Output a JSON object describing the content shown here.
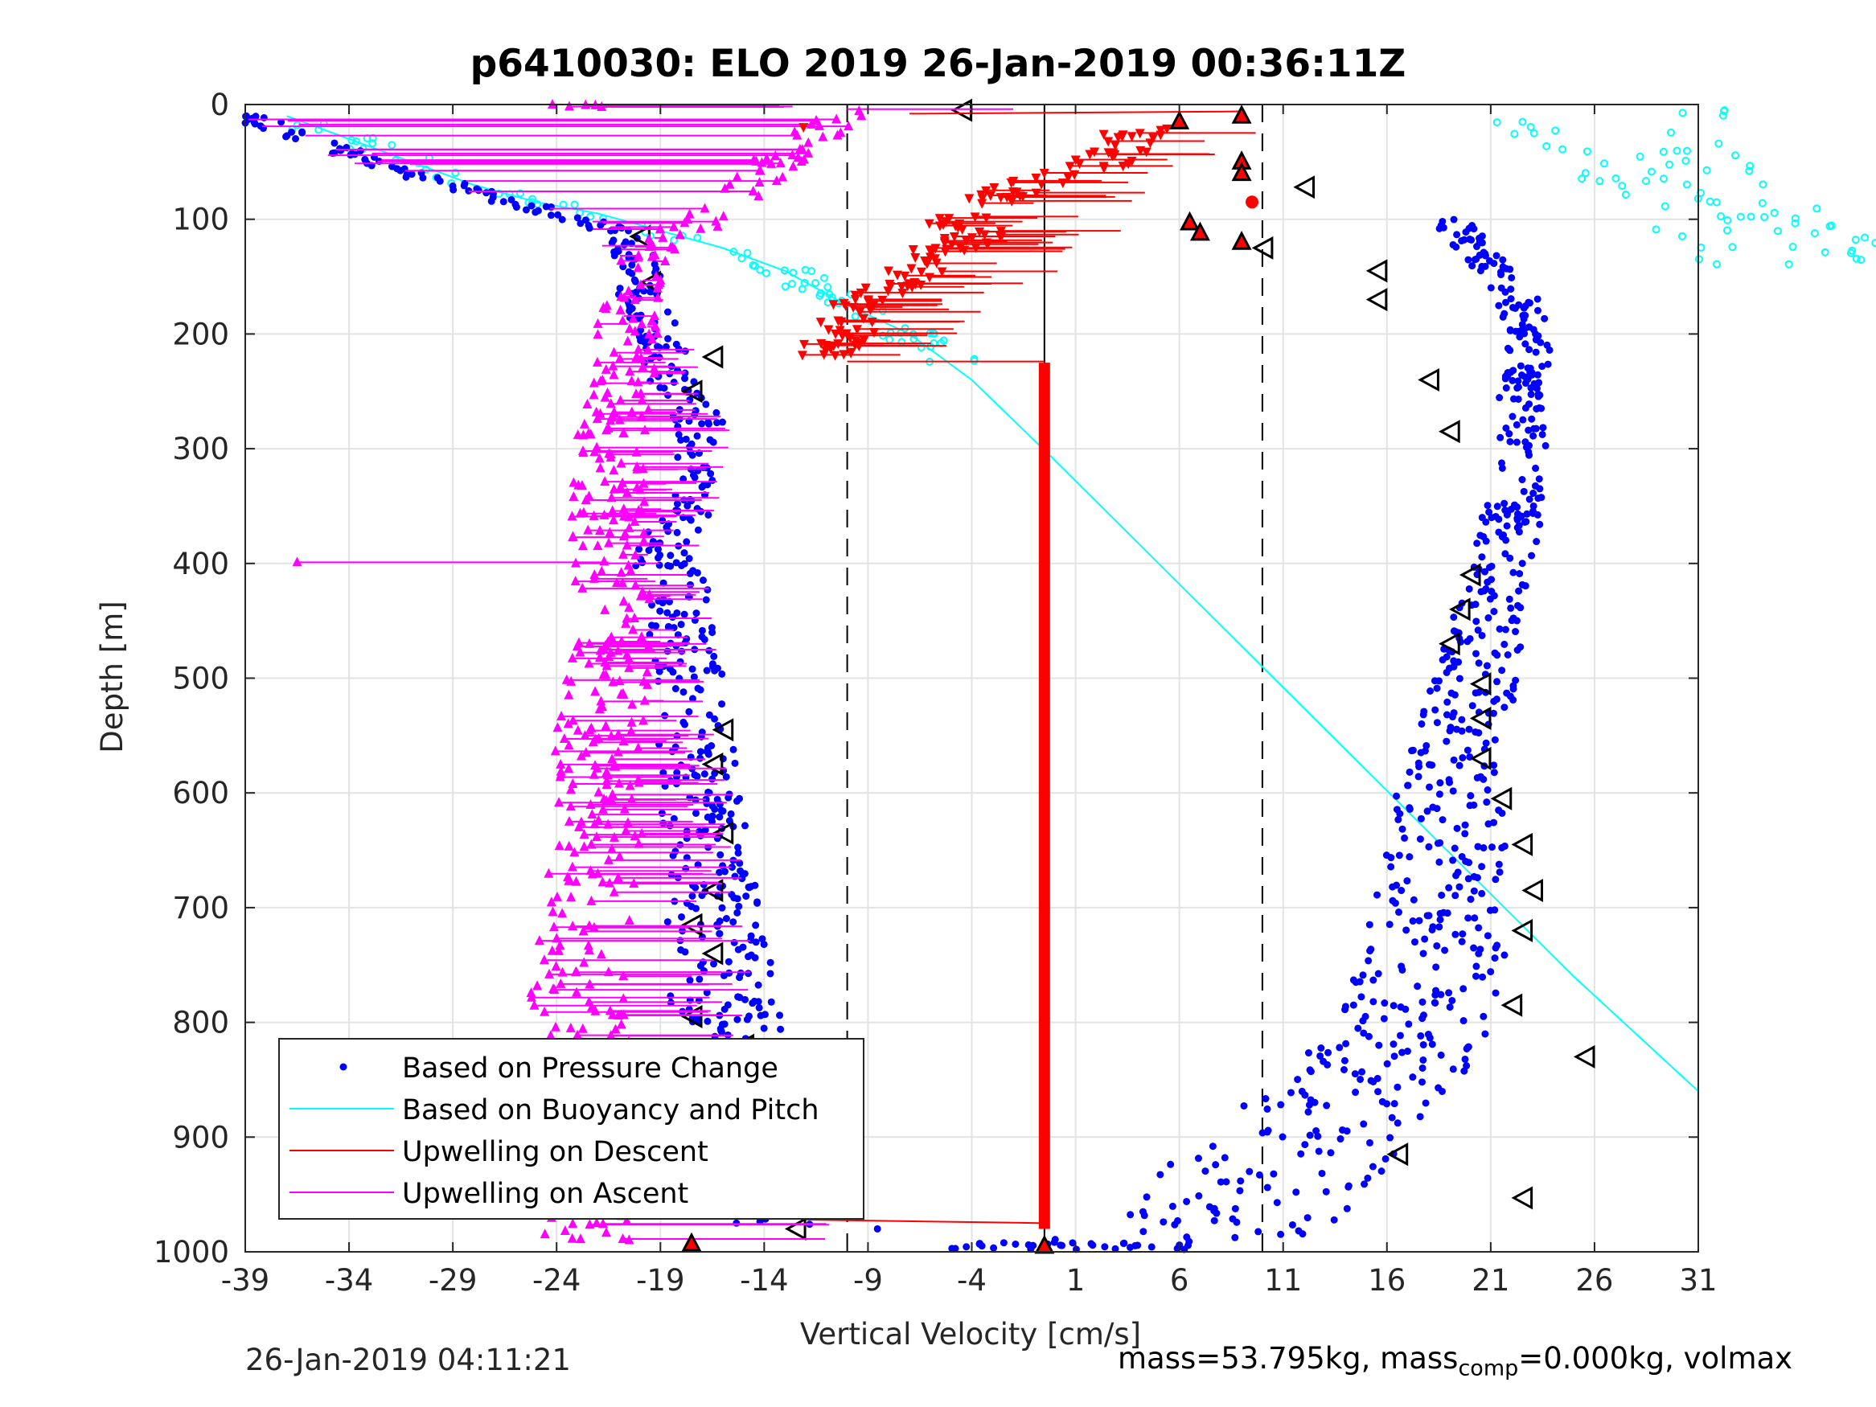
{
  "chart_data": {
    "type": "scatter",
    "title": "p6410030: ELO 2019 26-Jan-2019 00:36:11Z",
    "xlabel": "Vertical Velocity [cm/s]",
    "ylabel": "Depth [m]",
    "xlim": [
      -39,
      31
    ],
    "ylim": [
      0,
      1000
    ],
    "y_reversed": true,
    "grid": true,
    "x_ticks": [
      -39,
      -34,
      -29,
      -24,
      -19,
      -14,
      -9,
      -4,
      1,
      6,
      11,
      16,
      21,
      26,
      31
    ],
    "y_ticks": [
      0,
      100,
      200,
      300,
      400,
      500,
      600,
      700,
      800,
      900,
      1000
    ],
    "legend_position": "bottom-left",
    "reference_lines": {
      "dashed_x": [
        -10,
        10
      ],
      "solid_x": [
        -0.5
      ]
    },
    "series": [
      {
        "name": "Based on Pressure Change",
        "color": "#0000ff",
        "marker": "dot",
        "descent_x": [
          -39,
          -36,
          -32,
          -28,
          -24,
          -21,
          -20,
          -20,
          -19,
          -18.5,
          -17,
          -17,
          -18,
          -18.5,
          -19,
          -18,
          -18,
          -17.5,
          -17.5,
          -17,
          -17,
          -16.5,
          -16.5,
          -16,
          -16,
          -15.5,
          -15,
          -14.5,
          -13,
          -12
        ],
        "descent_y": [
          10,
          30,
          55,
          75,
          95,
          110,
          140,
          170,
          200,
          240,
          280,
          320,
          360,
          380,
          400,
          420,
          460,
          500,
          540,
          580,
          620,
          660,
          700,
          740,
          780,
          820,
          860,
          900,
          940,
          980
        ],
        "ascent_x": [
          2,
          9,
          9,
          10,
          11,
          12,
          14,
          16,
          17,
          18,
          18.5,
          18.5,
          19,
          19,
          19,
          20,
          20.5,
          21,
          21.5,
          22,
          22.5,
          22.5,
          22.5,
          23,
          22,
          21,
          20,
          19
        ],
        "ascent_y": [
          995,
          980,
          960,
          940,
          920,
          900,
          870,
          840,
          800,
          760,
          720,
          680,
          640,
          600,
          560,
          520,
          480,
          440,
          400,
          360,
          320,
          280,
          240,
          200,
          160,
          140,
          120,
          100
        ]
      },
      {
        "name": "Based on Buoyancy and Pitch",
        "color": "#00ffff",
        "marker": "line",
        "x": [
          -37,
          -34,
          -31,
          -28,
          -25,
          -22,
          -19,
          -16,
          -13,
          -10,
          -7,
          -4,
          0,
          5,
          10,
          15,
          20,
          25,
          31
        ],
        "y": [
          10,
          30,
          50,
          70,
          85,
          95,
          110,
          125,
          145,
          175,
          200,
          240,
          310,
          400,
          490,
          580,
          670,
          760,
          860
        ]
      },
      {
        "name": "Upwelling on Descent",
        "color": "#ff0000",
        "marker": "triangle-down",
        "x": [
          4,
          3,
          2,
          0,
          -2,
          -4,
          -5,
          -3,
          -6,
          -7,
          -8,
          -10,
          -10,
          -11
        ],
        "y": [
          20,
          40,
          55,
          60,
          75,
          90,
          110,
          110,
          130,
          150,
          160,
          180,
          200,
          215
        ],
        "bottom_x": -0.5,
        "bottom_y_range": [
          225,
          980
        ]
      },
      {
        "name": "Upwelling on Ascent",
        "color": "#ff00ff",
        "marker": "triangle-up",
        "x": [
          -10,
          -12,
          -14,
          -16,
          -18,
          -20,
          -20.5,
          -20.5,
          -21,
          -21.5,
          -21.5,
          -21.5,
          -21,
          -21.5,
          -22,
          -22,
          -22,
          -22.5,
          -23,
          -23,
          -23
        ],
        "y": [
          5,
          30,
          60,
          90,
          110,
          140,
          180,
          220,
          260,
          300,
          350,
          400,
          450,
          500,
          550,
          600,
          650,
          700,
          800,
          900,
          980
        ],
        "outlier": {
          "x": -36.5,
          "y": 399
        }
      }
    ]
  },
  "legend": {
    "items": [
      {
        "label": "Based on Pressure Change",
        "color": "#0000ff",
        "style": "dot"
      },
      {
        "label": "Based on Buoyancy and Pitch",
        "color": "#00ffff",
        "style": "line"
      },
      {
        "label": "Upwelling on Descent",
        "color": "#ff0000",
        "style": "line"
      },
      {
        "label": "Upwelling on Ascent",
        "color": "#ff00ff",
        "style": "line"
      }
    ]
  },
  "footer": {
    "timestamp": "26-Jan-2019 04:11:21",
    "mass_text": "mass=53.795kg, mass",
    "mass_sub": "comp",
    "mass_tail": "=0.000kg, volmax"
  }
}
